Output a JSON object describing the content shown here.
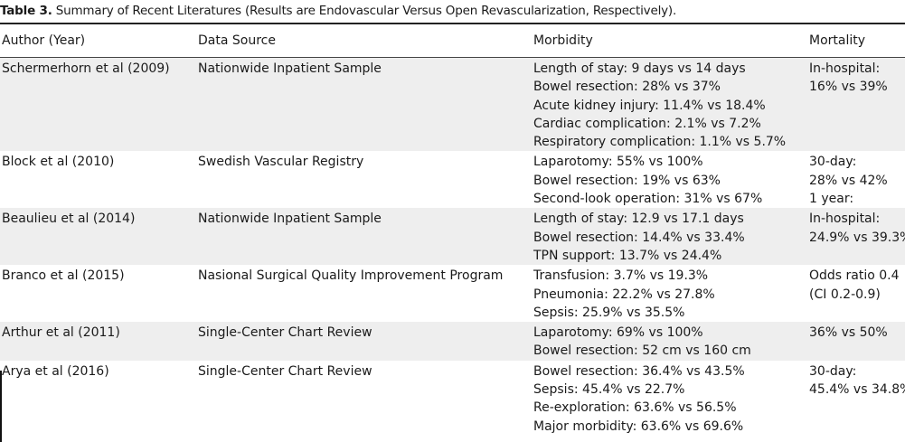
{
  "caption": {
    "label": "Table 3.",
    "text": " Summary of Recent Literatures (Results are Endovascular Versus Open Revascularization, Respectively)."
  },
  "headers": [
    "Author (Year)",
    "Data Source",
    "Morbidity",
    "Mortality"
  ],
  "rows": [
    {
      "author": "Schermerhorn et al (2009)",
      "source": "Nationwide Inpatient Sample",
      "morbidity": [
        "Length of stay: 9 days vs 14 days",
        "Bowel resection: 28% vs 37%",
        "Acute kidney injury: 11.4% vs 18.4%",
        "Cardiac complication: 2.1% vs 7.2%",
        "Respiratory complication: 1.1% vs 5.7%"
      ],
      "mortality": [
        "In-hospital:",
        "16% vs 39%"
      ]
    },
    {
      "author": "Block et al (2010)",
      "source": "Swedish Vascular Registry",
      "morbidity": [
        "Laparotomy: 55% vs 100%",
        "Bowel resection: 19% vs 63%",
        "Second-look operation: 31% vs 67%"
      ],
      "mortality": [
        "30-day:",
        "28% vs 42%",
        "1 year:"
      ]
    },
    {
      "author": "Beaulieu et al (2014)",
      "source": "Nationwide Inpatient Sample",
      "morbidity": [
        "Length of stay: 12.9 vs 17.1 days",
        "Bowel resection: 14.4% vs 33.4%",
        "TPN support: 13.7% vs 24.4%"
      ],
      "mortality": [
        "In-hospital:",
        "24.9% vs 39.3%"
      ]
    },
    {
      "author": "Branco et al (2015)",
      "source": "Nasional Surgical Quality Improvement Program",
      "morbidity": [
        "Transfusion: 3.7% vs 19.3%",
        "Pneumonia: 22.2% vs 27.8%",
        "Sepsis: 25.9% vs 35.5%"
      ],
      "mortality": [
        "Odds ratio 0.4",
        "(CI 0.2-0.9)"
      ]
    },
    {
      "author": "Arthur et al (2011)",
      "source": "Single-Center Chart Review",
      "morbidity": [
        "Laparotomy: 69% vs 100%",
        "Bowel resection: 52 cm vs 160 cm"
      ],
      "mortality": [
        "36% vs 50%"
      ]
    },
    {
      "author": "Arya et al (2016)",
      "source": "Single-Center Chart Review",
      "morbidity": [
        "Bowel resection: 36.4% vs 43.5%",
        "Sepsis: 45.4% vs 22.7%",
        "Re-exploration: 63.6% vs 56.5%",
        "Major morbidity: 63.6% vs 69.6%"
      ],
      "mortality": [
        "30-day:",
        "45.4% vs 34.8%"
      ]
    }
  ]
}
